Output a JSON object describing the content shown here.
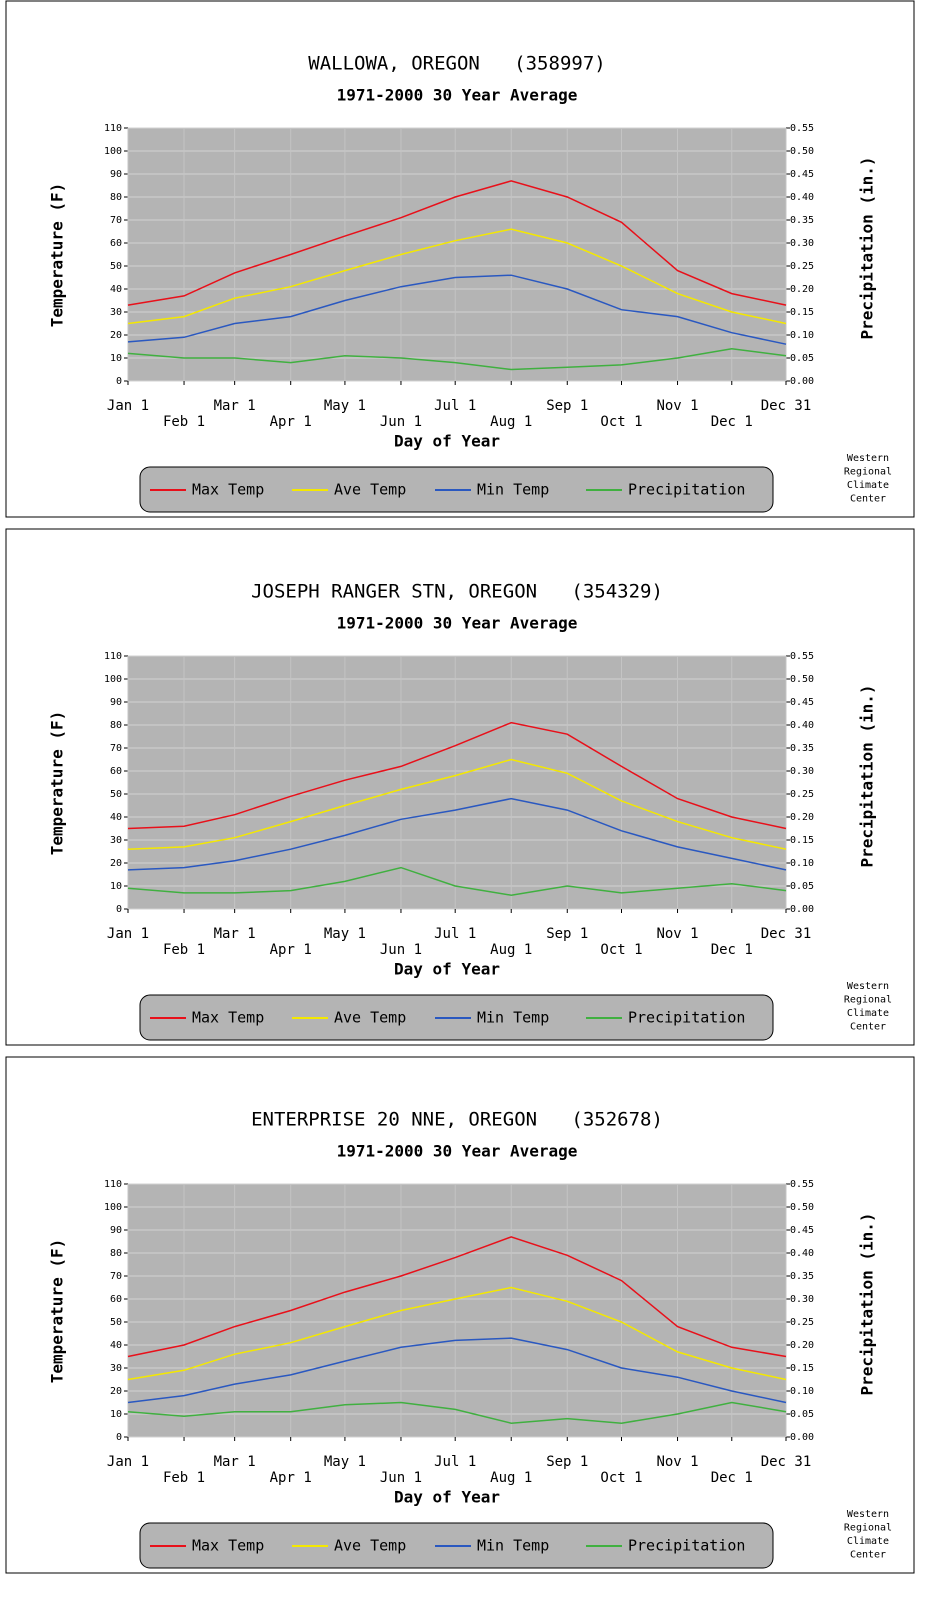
{
  "chart_data": [
    {
      "type": "line",
      "title": "WALLOWA, OREGON   (358997)",
      "subtitle": "1971-2000 30 Year Average",
      "xlabel": "Day of Year",
      "ylabel": "Temperature (F)",
      "y2label": "Precipitation (in.)",
      "credit": [
        "Western",
        "Regional",
        "Climate",
        "Center"
      ],
      "x": [
        1,
        32,
        60,
        91,
        121,
        152,
        182,
        213,
        244,
        274,
        305,
        335,
        365
      ],
      "xlim": [
        1,
        365
      ],
      "xticks": [
        {
          "value": 1,
          "label": "Jan 1"
        },
        {
          "value": 32,
          "label": "Feb 1"
        },
        {
          "value": 60,
          "label": "Mar 1"
        },
        {
          "value": 91,
          "label": "Apr 1"
        },
        {
          "value": 121,
          "label": "May 1"
        },
        {
          "value": 152,
          "label": "Jun 1"
        },
        {
          "value": 182,
          "label": "Jul 1"
        },
        {
          "value": 213,
          "label": "Aug 1"
        },
        {
          "value": 244,
          "label": "Sep 1"
        },
        {
          "value": 274,
          "label": "Oct 1"
        },
        {
          "value": 305,
          "label": "Nov 1"
        },
        {
          "value": 335,
          "label": "Dec 1"
        },
        {
          "value": 365,
          "label": "Dec 31"
        }
      ],
      "ylim": [
        0,
        110
      ],
      "yticks": [
        0,
        10,
        20,
        30,
        40,
        50,
        60,
        70,
        80,
        90,
        100,
        110
      ],
      "y2lim": [
        0,
        0.55
      ],
      "y2ticks": [
        {
          "value": 0,
          "label": "0.00"
        },
        {
          "value": 0.05,
          "label": "0.05"
        },
        {
          "value": 0.1,
          "label": "0.10"
        },
        {
          "value": 0.15,
          "label": "0.15"
        },
        {
          "value": 0.2,
          "label": "0.20"
        },
        {
          "value": 0.25,
          "label": "0.25"
        },
        {
          "value": 0.3,
          "label": "0.30"
        },
        {
          "value": 0.35,
          "label": "0.35"
        },
        {
          "value": 0.4,
          "label": "0.40"
        },
        {
          "value": 0.45,
          "label": "0.45"
        },
        {
          "value": 0.5,
          "label": "0.50"
        },
        {
          "value": 0.55,
          "label": "0.55"
        }
      ],
      "grid": true,
      "series": [
        {
          "name": "Max Temp",
          "color": "#e8101a",
          "values": [
            33,
            37,
            47,
            55,
            63,
            71,
            80,
            87,
            80,
            69,
            48,
            38,
            33
          ]
        },
        {
          "name": "Ave Temp",
          "color": "#f4e800",
          "values": [
            25,
            28,
            36,
            41,
            48,
            55,
            61,
            66,
            60,
            50,
            38,
            30,
            25
          ]
        },
        {
          "name": "Min Temp",
          "color": "#2a58c0",
          "values": [
            17,
            19,
            25,
            28,
            35,
            41,
            45,
            46,
            40,
            31,
            28,
            21,
            16
          ]
        },
        {
          "name": "Precipitation",
          "color": "#40b040",
          "axis": "y2",
          "values": [
            0.06,
            0.05,
            0.05,
            0.04,
            0.055,
            0.05,
            0.04,
            0.025,
            0.03,
            0.035,
            0.05,
            0.07,
            0.055
          ]
        }
      ]
    },
    {
      "type": "line",
      "title": "JOSEPH RANGER STN, OREGON   (354329)",
      "subtitle": "1971-2000 30 Year Average",
      "xlabel": "Day of Year",
      "ylabel": "Temperature (F)",
      "y2label": "Precipitation (in.)",
      "credit": [
        "Western",
        "Regional",
        "Climate",
        "Center"
      ],
      "x": [
        1,
        32,
        60,
        91,
        121,
        152,
        182,
        213,
        244,
        274,
        305,
        335,
        365
      ],
      "xlim": [
        1,
        365
      ],
      "xticks": [
        {
          "value": 1,
          "label": "Jan 1"
        },
        {
          "value": 32,
          "label": "Feb 1"
        },
        {
          "value": 60,
          "label": "Mar 1"
        },
        {
          "value": 91,
          "label": "Apr 1"
        },
        {
          "value": 121,
          "label": "May 1"
        },
        {
          "value": 152,
          "label": "Jun 1"
        },
        {
          "value": 182,
          "label": "Jul 1"
        },
        {
          "value": 213,
          "label": "Aug 1"
        },
        {
          "value": 244,
          "label": "Sep 1"
        },
        {
          "value": 274,
          "label": "Oct 1"
        },
        {
          "value": 305,
          "label": "Nov 1"
        },
        {
          "value": 335,
          "label": "Dec 1"
        },
        {
          "value": 365,
          "label": "Dec 31"
        }
      ],
      "ylim": [
        0,
        110
      ],
      "yticks": [
        0,
        10,
        20,
        30,
        40,
        50,
        60,
        70,
        80,
        90,
        100,
        110
      ],
      "y2lim": [
        0,
        0.55
      ],
      "y2ticks": [
        {
          "value": 0,
          "label": "0.00"
        },
        {
          "value": 0.05,
          "label": "0.05"
        },
        {
          "value": 0.1,
          "label": "0.10"
        },
        {
          "value": 0.15,
          "label": "0.15"
        },
        {
          "value": 0.2,
          "label": "0.20"
        },
        {
          "value": 0.25,
          "label": "0.25"
        },
        {
          "value": 0.3,
          "label": "0.30"
        },
        {
          "value": 0.35,
          "label": "0.35"
        },
        {
          "value": 0.4,
          "label": "0.40"
        },
        {
          "value": 0.45,
          "label": "0.45"
        },
        {
          "value": 0.5,
          "label": "0.50"
        },
        {
          "value": 0.55,
          "label": "0.55"
        }
      ],
      "grid": true,
      "series": [
        {
          "name": "Max Temp",
          "color": "#e8101a",
          "values": [
            35,
            36,
            41,
            49,
            56,
            62,
            71,
            81,
            76,
            62,
            48,
            40,
            35
          ]
        },
        {
          "name": "Ave Temp",
          "color": "#f4e800",
          "values": [
            26,
            27,
            31,
            38,
            45,
            52,
            58,
            65,
            59,
            47,
            38,
            31,
            26
          ]
        },
        {
          "name": "Min Temp",
          "color": "#2a58c0",
          "values": [
            17,
            18,
            21,
            26,
            32,
            39,
            43,
            48,
            43,
            34,
            27,
            22,
            17
          ]
        },
        {
          "name": "Precipitation",
          "color": "#40b040",
          "axis": "y2",
          "values": [
            0.045,
            0.035,
            0.035,
            0.04,
            0.06,
            0.09,
            0.05,
            0.03,
            0.05,
            0.035,
            0.045,
            0.055,
            0.04
          ]
        }
      ]
    },
    {
      "type": "line",
      "title": "ENTERPRISE 20 NNE, OREGON   (352678)",
      "subtitle": "1971-2000 30 Year Average",
      "xlabel": "Day of Year",
      "ylabel": "Temperature (F)",
      "y2label": "Precipitation (in.)",
      "credit": [
        "Western",
        "Regional",
        "Climate",
        "Center"
      ],
      "x": [
        1,
        32,
        60,
        91,
        121,
        152,
        182,
        213,
        244,
        274,
        305,
        335,
        365
      ],
      "xlim": [
        1,
        365
      ],
      "xticks": [
        {
          "value": 1,
          "label": "Jan 1"
        },
        {
          "value": 32,
          "label": "Feb 1"
        },
        {
          "value": 60,
          "label": "Mar 1"
        },
        {
          "value": 91,
          "label": "Apr 1"
        },
        {
          "value": 121,
          "label": "May 1"
        },
        {
          "value": 152,
          "label": "Jun 1"
        },
        {
          "value": 182,
          "label": "Jul 1"
        },
        {
          "value": 213,
          "label": "Aug 1"
        },
        {
          "value": 244,
          "label": "Sep 1"
        },
        {
          "value": 274,
          "label": "Oct 1"
        },
        {
          "value": 305,
          "label": "Nov 1"
        },
        {
          "value": 335,
          "label": "Dec 1"
        },
        {
          "value": 365,
          "label": "Dec 31"
        }
      ],
      "ylim": [
        0,
        110
      ],
      "yticks": [
        0,
        10,
        20,
        30,
        40,
        50,
        60,
        70,
        80,
        90,
        100,
        110
      ],
      "y2lim": [
        0,
        0.55
      ],
      "y2ticks": [
        {
          "value": 0,
          "label": "0.00"
        },
        {
          "value": 0.05,
          "label": "0.05"
        },
        {
          "value": 0.1,
          "label": "0.10"
        },
        {
          "value": 0.15,
          "label": "0.15"
        },
        {
          "value": 0.2,
          "label": "0.20"
        },
        {
          "value": 0.25,
          "label": "0.25"
        },
        {
          "value": 0.3,
          "label": "0.30"
        },
        {
          "value": 0.35,
          "label": "0.35"
        },
        {
          "value": 0.4,
          "label": "0.40"
        },
        {
          "value": 0.45,
          "label": "0.45"
        },
        {
          "value": 0.5,
          "label": "0.50"
        },
        {
          "value": 0.55,
          "label": "0.55"
        }
      ],
      "grid": true,
      "series": [
        {
          "name": "Max Temp",
          "color": "#e8101a",
          "values": [
            35,
            40,
            48,
            55,
            63,
            70,
            78,
            87,
            79,
            68,
            48,
            39,
            35
          ]
        },
        {
          "name": "Ave Temp",
          "color": "#f4e800",
          "values": [
            25,
            29,
            36,
            41,
            48,
            55,
            60,
            65,
            59,
            50,
            37,
            30,
            25
          ]
        },
        {
          "name": "Min Temp",
          "color": "#2a58c0",
          "values": [
            15,
            18,
            23,
            27,
            33,
            39,
            42,
            43,
            38,
            30,
            26,
            20,
            15
          ]
        },
        {
          "name": "Precipitation",
          "color": "#40b040",
          "axis": "y2",
          "values": [
            0.055,
            0.045,
            0.055,
            0.055,
            0.07,
            0.075,
            0.06,
            0.03,
            0.04,
            0.03,
            0.05,
            0.075,
            0.055
          ]
        }
      ]
    }
  ]
}
